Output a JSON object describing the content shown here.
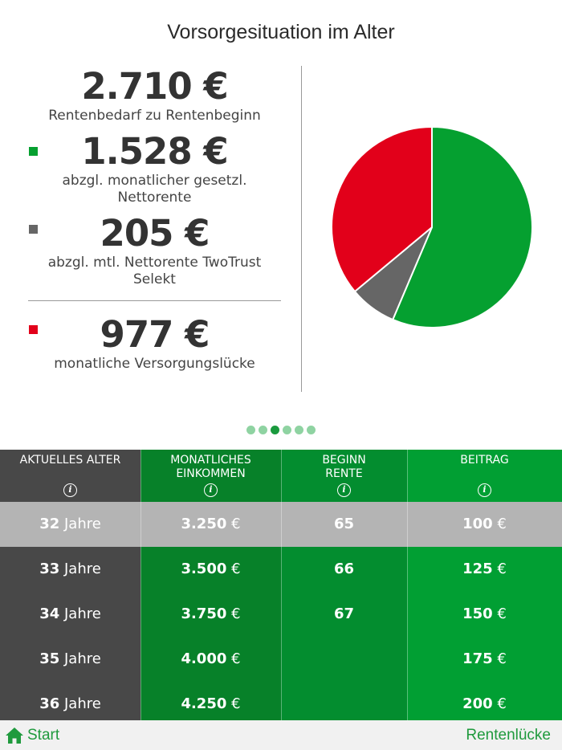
{
  "header": {
    "title": "Vorsorgesituation im Alter"
  },
  "summary": {
    "need_value": "2.710 €",
    "need_label": "Rentenbedarf zu Rentenbeginn",
    "statutory_value": "1.528 €",
    "statutory_label_1": "abzgl. monatlicher gesetzl.",
    "statutory_label_2": "Nettorente",
    "twotrust_value": "205 €",
    "twotrust_label_1": "abzgl. mtl. Nettorente TwoTrust",
    "twotrust_label_2": "Selekt",
    "gap_value": "977 €",
    "gap_label": "monatliche Versorgungslücke"
  },
  "colors": {
    "statutory": "#05a030",
    "twotrust": "#666666",
    "gap": "#e2001a"
  },
  "chart_data": {
    "type": "pie",
    "categories": [
      "gesetzl. Nettorente",
      "Nettorente TwoTrust Selekt",
      "Versorgungslücke"
    ],
    "values": [
      1528,
      205,
      977
    ],
    "colors": [
      "#05a030",
      "#666666",
      "#e2001a"
    ]
  },
  "pager": {
    "count": 6,
    "active": 2
  },
  "table": {
    "headers": {
      "age": "AKTUELLES ALTER",
      "income_1": "MONATLICHES",
      "income_2": "EINKOMMEN",
      "start_1": "BEGINN",
      "start_2": "RENTE",
      "contribution": "BEITRAG"
    },
    "info_glyph": "i",
    "age_unit": "Jahre",
    "currency": "€",
    "rows": [
      {
        "age": "32",
        "income": "3.250",
        "start": "65",
        "contribution": "100"
      },
      {
        "age": "33",
        "income": "3.500",
        "start": "66",
        "contribution": "125"
      },
      {
        "age": "34",
        "income": "3.750",
        "start": "67",
        "contribution": "150"
      },
      {
        "age": "35",
        "income": "4.000",
        "start": "",
        "contribution": "175"
      },
      {
        "age": "36",
        "income": "4.250",
        "start": "",
        "contribution": "200"
      }
    ]
  },
  "footer": {
    "start_label": "Start",
    "next_label": "Rentenlücke"
  }
}
